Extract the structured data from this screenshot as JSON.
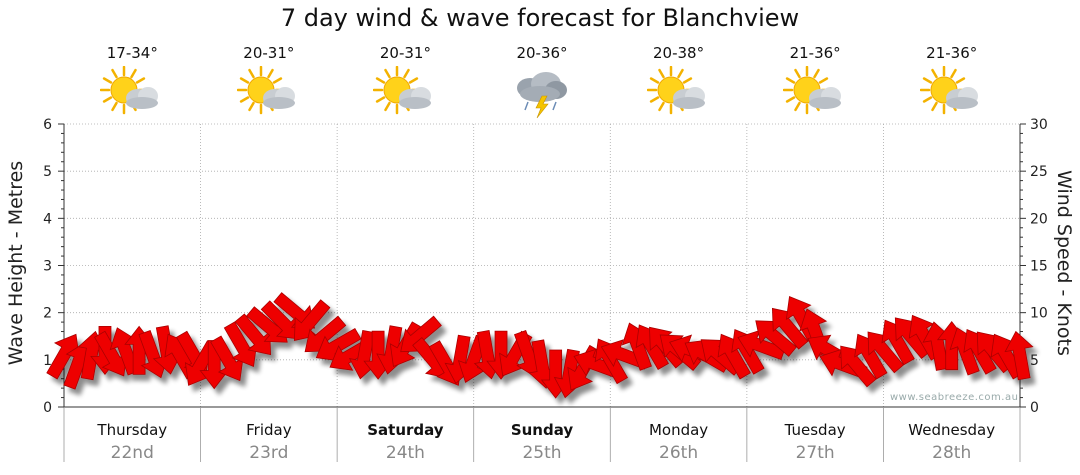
{
  "title": "7 day wind & wave forecast for Blanchview",
  "credit": "www.seabreeze.com.au",
  "colors": {
    "arrow": "#ee0000",
    "arrow_stroke": "#aa0000",
    "grid": "#aaaaaa",
    "axis": "#333333"
  },
  "days": [
    {
      "name": "Thursday",
      "date": "22nd",
      "temp": "17-34°",
      "icon": "partly-cloudy-icon",
      "bold": false
    },
    {
      "name": "Friday",
      "date": "23rd",
      "temp": "20-31°",
      "icon": "partly-cloudy-icon",
      "bold": false
    },
    {
      "name": "Saturday",
      "date": "24th",
      "temp": "20-31°",
      "icon": "partly-cloudy-icon",
      "bold": true
    },
    {
      "name": "Sunday",
      "date": "25th",
      "temp": "20-36°",
      "icon": "thunderstorm-icon",
      "bold": true
    },
    {
      "name": "Monday",
      "date": "26th",
      "temp": "20-38°",
      "icon": "partly-cloudy-icon",
      "bold": false
    },
    {
      "name": "Tuesday",
      "date": "27th",
      "temp": "21-36°",
      "icon": "partly-cloudy-icon",
      "bold": false
    },
    {
      "name": "Wednesday",
      "date": "28th",
      "temp": "21-36°",
      "icon": "partly-cloudy-icon",
      "bold": false
    }
  ],
  "chart_data": {
    "type": "scatter",
    "title": "7 day wind & wave forecast for Blanchview",
    "ylabel_left": "Wave Height - Metres",
    "ylabel_right": "Wind Speed - Knots",
    "ylim_left": [
      0,
      6
    ],
    "ylim_right": [
      0,
      30
    ],
    "yticks_left": [
      "0",
      "1",
      "2",
      "3",
      "4",
      "5",
      "6"
    ],
    "yticks_right": [
      "0",
      "5",
      "10",
      "15",
      "20",
      "25",
      "30"
    ],
    "x_range_days": [
      0,
      7
    ],
    "grid": true,
    "series": [
      {
        "x_days": [
          0.0,
          0.1,
          0.2,
          0.3,
          0.35,
          0.45,
          0.55,
          0.65,
          0.75,
          0.85,
          0.95,
          1.0,
          1.1,
          1.2,
          1.3,
          1.4,
          1.5,
          1.6,
          1.7,
          1.8,
          1.9,
          2.0,
          2.1,
          2.2,
          2.3,
          2.4,
          2.5,
          2.6,
          2.7,
          2.8,
          2.9,
          3.0,
          3.1,
          3.2,
          3.3,
          3.4,
          3.5,
          3.6,
          3.7,
          3.8,
          3.9,
          4.0,
          4.1,
          4.2,
          4.3,
          4.4,
          4.5,
          4.6,
          4.7,
          4.8,
          4.9,
          5.0,
          5.1,
          5.2,
          5.3,
          5.4,
          5.5,
          5.6,
          5.7,
          5.8,
          5.9,
          6.0,
          6.1,
          6.2,
          6.3,
          6.4,
          6.5,
          6.6,
          6.7,
          6.8,
          6.9,
          7.0
        ],
        "wind_knots": [
          5.5,
          4.5,
          5.5,
          6,
          5.5,
          6,
          6,
          5.5,
          6,
          5.5,
          5.5,
          4.5,
          4.5,
          5,
          6.5,
          7.5,
          8.5,
          9,
          10,
          9,
          7.5,
          6.5,
          5.5,
          5.5,
          5.5,
          6,
          6.5,
          7.5,
          5,
          4.5,
          5,
          5,
          5.5,
          5.5,
          5.5,
          5.5,
          4.5,
          3.5,
          3.5,
          4,
          4.5,
          5,
          5.5,
          6.5,
          6.5,
          6.5,
          6,
          6,
          5.5,
          5.5,
          5.5,
          6,
          6.5,
          7.5,
          8.5,
          9.5,
          8,
          6,
          4.5,
          4.5,
          5.5,
          6,
          7,
          7.5,
          7.5,
          6.5,
          6.5,
          6,
          6,
          6,
          5.5,
          5.5
        ],
        "wind_dir_deg": [
          300,
          290,
          280,
          90,
          60,
          250,
          270,
          70,
          80,
          240,
          60,
          120,
          90,
          60,
          60,
          50,
          40,
          45,
          40,
          130,
          140,
          150,
          150,
          100,
          90,
          100,
          120,
          140,
          50,
          60,
          100,
          110,
          80,
          90,
          120,
          70,
          80,
          90,
          100,
          120,
          200,
          240,
          200,
          250,
          240,
          230,
          220,
          200,
          210,
          220,
          240,
          240,
          200,
          220,
          230,
          240,
          250,
          210,
          200,
          230,
          240,
          230,
          240,
          230,
          240,
          260,
          270,
          250,
          240,
          230,
          240,
          260
        ]
      }
    ]
  }
}
